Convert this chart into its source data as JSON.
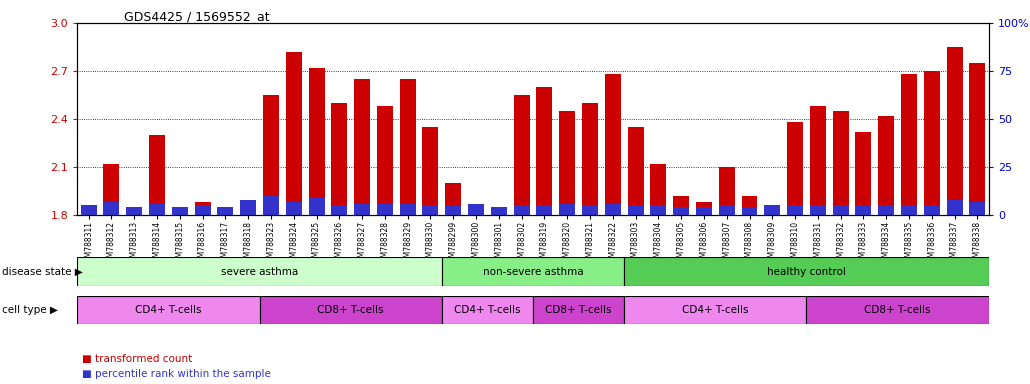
{
  "title": "GDS4425 / 1569552_at",
  "samples": [
    "GSM788311",
    "GSM788312",
    "GSM788313",
    "GSM788314",
    "GSM788315",
    "GSM788316",
    "GSM788317",
    "GSM788318",
    "GSM788323",
    "GSM788324",
    "GSM788325",
    "GSM788326",
    "GSM788327",
    "GSM788328",
    "GSM788329",
    "GSM788330",
    "GSM788299",
    "GSM788300",
    "GSM788301",
    "GSM788302",
    "GSM788319",
    "GSM788320",
    "GSM788321",
    "GSM788322",
    "GSM788303",
    "GSM788304",
    "GSM788305",
    "GSM788306",
    "GSM788307",
    "GSM788308",
    "GSM788309",
    "GSM788310",
    "GSM788331",
    "GSM788332",
    "GSM788333",
    "GSM788334",
    "GSM788335",
    "GSM788336",
    "GSM788337",
    "GSM788338"
  ],
  "transformed_count": [
    1.84,
    2.12,
    1.84,
    2.3,
    1.84,
    1.88,
    1.85,
    1.88,
    2.55,
    2.82,
    2.72,
    2.5,
    2.65,
    2.48,
    2.65,
    2.35,
    2.0,
    1.87,
    1.85,
    2.55,
    2.6,
    2.45,
    2.5,
    2.68,
    2.35,
    2.12,
    1.92,
    1.88,
    2.1,
    1.92,
    1.85,
    2.38,
    2.48,
    2.45,
    2.32,
    2.42,
    2.68,
    2.7,
    2.85,
    2.75
  ],
  "percentile_rank": [
    5,
    7,
    4,
    6,
    4,
    5,
    4,
    8,
    10,
    7,
    9,
    5,
    6,
    6,
    6,
    5,
    5,
    6,
    4,
    5,
    5,
    6,
    5,
    6,
    5,
    5,
    4,
    4,
    5,
    4,
    5,
    5,
    5,
    5,
    5,
    5,
    5,
    5,
    8,
    7
  ],
  "bar_color": "#cc0000",
  "blue_color": "#3333cc",
  "ymin": 1.8,
  "ymax": 3.0,
  "yticks": [
    1.8,
    2.1,
    2.4,
    2.7,
    3.0
  ],
  "right_yticks": [
    0,
    25,
    50,
    75,
    100
  ],
  "dotted_lines": [
    2.1,
    2.4,
    2.7
  ],
  "disease_state_groups": [
    {
      "label": "severe asthma",
      "start": 0,
      "end": 16,
      "color": "#ccffcc"
    },
    {
      "label": "non-severe asthma",
      "start": 16,
      "end": 24,
      "color": "#88ee88"
    },
    {
      "label": "healthy control",
      "start": 24,
      "end": 40,
      "color": "#55cc55"
    }
  ],
  "cell_type_groups": [
    {
      "label": "CD4+ T-cells",
      "start": 0,
      "end": 8,
      "color": "#ee88ee"
    },
    {
      "label": "CD8+ T-cells",
      "start": 8,
      "end": 16,
      "color": "#cc44cc"
    },
    {
      "label": "CD4+ T-cells",
      "start": 16,
      "end": 20,
      "color": "#ee88ee"
    },
    {
      "label": "CD8+ T-cells",
      "start": 20,
      "end": 24,
      "color": "#cc44cc"
    },
    {
      "label": "CD4+ T-cells",
      "start": 24,
      "end": 32,
      "color": "#ee88ee"
    },
    {
      "label": "CD8+ T-cells",
      "start": 32,
      "end": 40,
      "color": "#cc44cc"
    }
  ],
  "legend_red": "transformed count",
  "legend_blue": "percentile rank within the sample",
  "disease_state_label": "disease state",
  "cell_type_label": "cell type",
  "left_axis_color": "#cc0000",
  "right_axis_color": "#0000cc",
  "bg_color": "#ffffff"
}
